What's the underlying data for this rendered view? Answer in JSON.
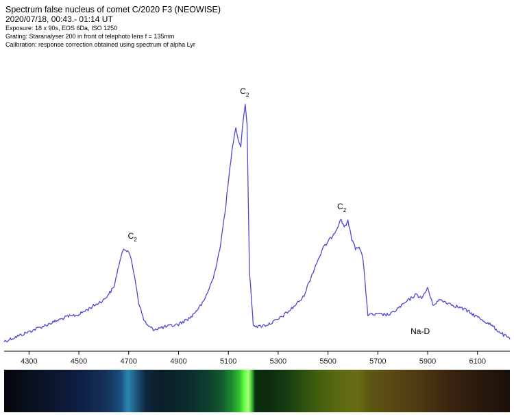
{
  "header": {
    "title": "Spectrum false nucleus of comet C/2020 F3 (NEOWISE)",
    "date": "2020/07/18,  00:43.- 01:14 UT",
    "exposure": "Exposure: 18 x 90s, EOS 6Da, ISO 1250",
    "grating": "Grating: Staranalyser 200 in front of telephoto lens f = 135mm",
    "calibration": "Calibration: response correction obtained using spectrum of alpha Lyr"
  },
  "colors": {
    "line": "#4a4acf",
    "axis": "#000000"
  },
  "chart_data": {
    "type": "line",
    "title": "Spectrum false nucleus of comet C/2020 F3 (NEOWISE)",
    "xlabel": "",
    "ylabel": "",
    "xlim": [
      4200,
      6230
    ],
    "ylim": [
      0,
      1.05
    ],
    "x_ticks": [
      4300,
      4500,
      4700,
      4900,
      5100,
      5300,
      5500,
      5700,
      5900,
      6100
    ],
    "grid": false,
    "legend": "none",
    "series": [
      {
        "x": [
          4200,
          4250,
          4300,
          4350,
          4400,
          4450,
          4500,
          4550,
          4600,
          4640,
          4660,
          4680,
          4700,
          4710,
          4725,
          4740,
          4760,
          4780,
          4800,
          4850,
          4900,
          4950,
          5000,
          5040,
          5070,
          5090,
          5110,
          5120,
          5130,
          5140,
          5150,
          5160,
          5168,
          5175,
          5185,
          5200,
          5220,
          5260,
          5300,
          5350,
          5400,
          5450,
          5480,
          5510,
          5535,
          5550,
          5565,
          5580,
          5595,
          5610,
          5625,
          5640,
          5660,
          5700,
          5750,
          5800,
          5850,
          5880,
          5900,
          5920,
          5950,
          6000,
          6050,
          6100,
          6150,
          6200,
          6230
        ],
        "y": [
          0.02,
          0.04,
          0.06,
          0.08,
          0.1,
          0.12,
          0.13,
          0.16,
          0.19,
          0.24,
          0.33,
          0.4,
          0.39,
          0.35,
          0.28,
          0.18,
          0.11,
          0.08,
          0.07,
          0.08,
          0.09,
          0.12,
          0.18,
          0.28,
          0.42,
          0.58,
          0.76,
          0.84,
          0.9,
          0.84,
          0.82,
          0.93,
          0.99,
          0.9,
          0.3,
          0.09,
          0.08,
          0.09,
          0.11,
          0.15,
          0.2,
          0.33,
          0.4,
          0.44,
          0.48,
          0.52,
          0.49,
          0.51,
          0.44,
          0.4,
          0.41,
          0.36,
          0.13,
          0.13,
          0.13,
          0.17,
          0.21,
          0.2,
          0.24,
          0.17,
          0.19,
          0.17,
          0.15,
          0.12,
          0.09,
          0.05,
          0.03
        ]
      }
    ],
    "annotations": [
      {
        "text": "C",
        "sub": "2",
        "x": 4715,
        "y": 0.44
      },
      {
        "text": "C",
        "sub": "2",
        "x": 5165,
        "y": 1.03
      },
      {
        "text": "C",
        "sub": "2",
        "x": 5555,
        "y": 0.56
      },
      {
        "text": "Na-D",
        "x": 5870,
        "y": 0.05
      }
    ]
  }
}
